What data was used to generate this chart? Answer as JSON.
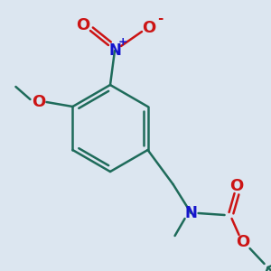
{
  "background_color": "#dce6f0",
  "bond_color": "#1e6b5a",
  "n_color": "#1414cc",
  "o_color": "#cc1414",
  "lw": 1.8,
  "figsize": [
    3.0,
    3.0
  ],
  "dpi": 100,
  "xlim": [
    0,
    300
  ],
  "ylim": [
    0,
    300
  ]
}
